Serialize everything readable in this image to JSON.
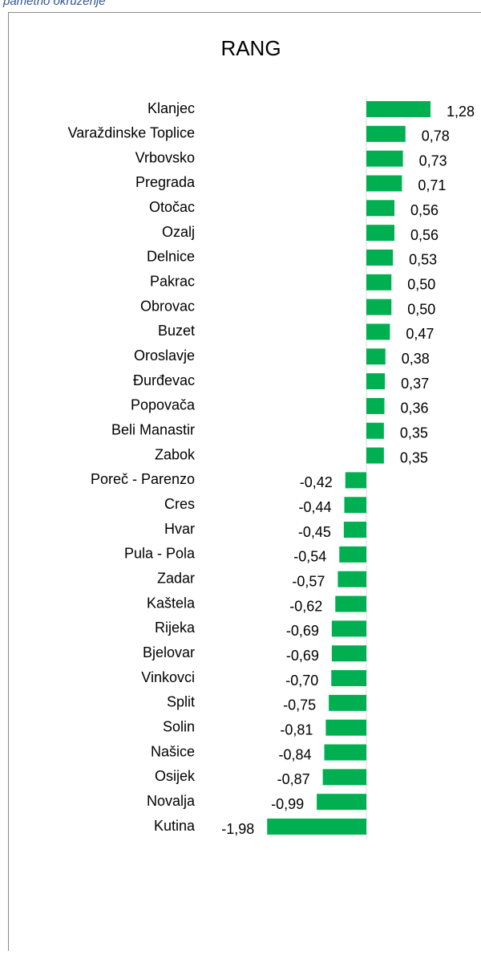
{
  "caption": "pametno okruženje",
  "chart_data": {
    "type": "barh",
    "title": "RANG",
    "color": "#00b050",
    "xlim": [
      -2,
      2
    ],
    "categories": [
      "Klanjec",
      "Varaždinske Toplice",
      "Vrbovsko",
      "Pregrada",
      "Otočac",
      "Ozalj",
      "Delnice",
      "Pakrac",
      "Obrovac",
      "Buzet",
      "Oroslavje",
      "Đurđevac",
      "Popovača",
      "Beli Manastir",
      "Zabok",
      "Poreč - Parenzo",
      "Cres",
      "Hvar",
      "Pula - Pola",
      "Zadar",
      "Kaštela",
      "Rijeka",
      "Bjelovar",
      "Vinkovci",
      "Split",
      "Solin",
      "Našice",
      "Osijek",
      "Novalja",
      "Kutina"
    ],
    "values": [
      1.28,
      0.78,
      0.73,
      0.71,
      0.56,
      0.56,
      0.53,
      0.5,
      0.5,
      0.47,
      0.38,
      0.37,
      0.36,
      0.35,
      0.35,
      -0.42,
      -0.44,
      -0.45,
      -0.54,
      -0.57,
      -0.62,
      -0.69,
      -0.69,
      -0.7,
      -0.75,
      -0.81,
      -0.84,
      -0.87,
      -0.99,
      -1.98
    ],
    "value_labels": [
      "1,28",
      "0,78",
      "0,73",
      "0,71",
      "0,56",
      "0,56",
      "0,53",
      "0,50",
      "0,50",
      "0,47",
      "0,38",
      "0,37",
      "0,36",
      "0,35",
      "0,35",
      "-0,42",
      "-0,44",
      "-0,45",
      "-0,54",
      "-0,57",
      "-0,62",
      "-0,69",
      "-0,69",
      "-0,70",
      "-0,75",
      "-0,81",
      "-0,84",
      "-0,87",
      "-0,99",
      "-1,98"
    ]
  }
}
